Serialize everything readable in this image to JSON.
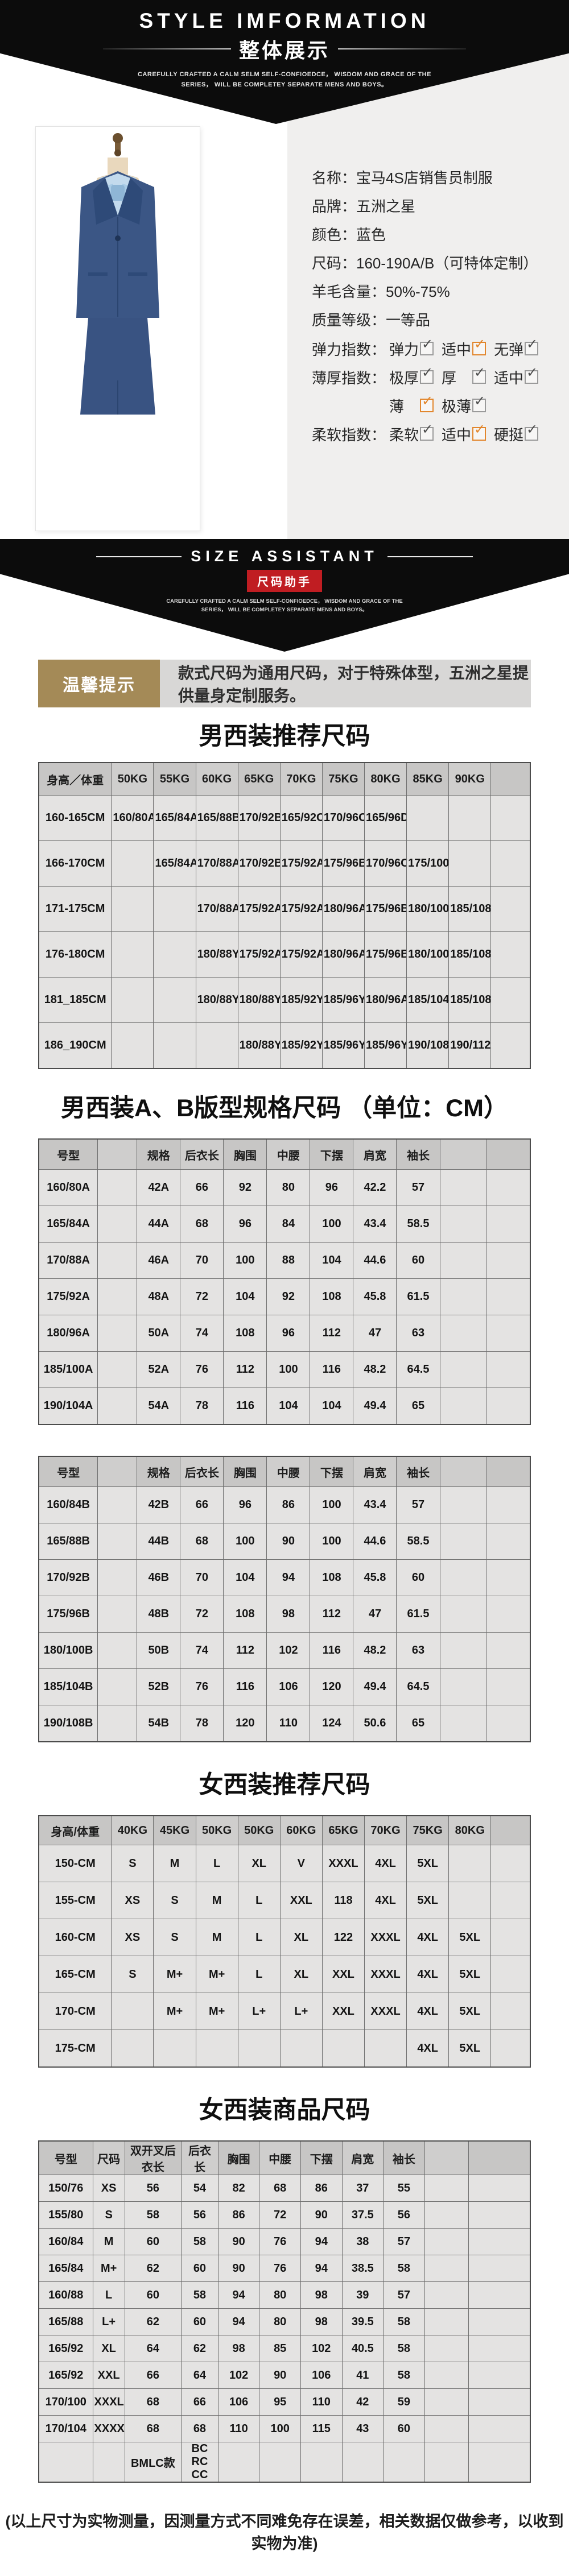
{
  "colors": {
    "accent_orange": "#e2862c",
    "badge_red": "#c01d22",
    "tip_brown": "#a48a57",
    "suit_navy": "#3b5685",
    "shirt_blue": "#c3daed"
  },
  "banner1": {
    "title": "STYLE IMFORMATION",
    "subtitle": "整体展示",
    "tagline1": "CAREFULLY CRAFTED A CALM SELM SELF-CONFIOEDCE， WISDOM AND GRACE OF THE",
    "tagline2": "SERIES， WILL BE COMPLETEY SEPARATE MENS AND BOYS。"
  },
  "product": {
    "details": [
      {
        "label": "名称",
        "value": "宝马4S店销售员制服"
      },
      {
        "label": "品牌",
        "value": "五洲之星"
      },
      {
        "label": "颜色",
        "value": "蓝色"
      },
      {
        "label": "尺码",
        "value": "160-190A/B（可特体定制）"
      },
      {
        "label": "羊毛含量",
        "value": "50%-75%"
      },
      {
        "label": "质量等级",
        "value": "一等品"
      }
    ],
    "indices": [
      {
        "label": "弹力指数",
        "options": [
          {
            "text": "弹力",
            "state": "gray"
          },
          {
            "text": "适中",
            "state": "orange"
          },
          {
            "text": "无弹",
            "state": "gray"
          }
        ]
      },
      {
        "label": "薄厚指数",
        "options": [
          {
            "text": "极厚",
            "state": "gray"
          },
          {
            "text": "厚",
            "state": "gray"
          },
          {
            "text": "适中",
            "state": "gray"
          }
        ]
      },
      {
        "label": "",
        "options": [
          {
            "text": "薄",
            "state": "orange"
          },
          {
            "text": "极薄",
            "state": "gray"
          }
        ]
      },
      {
        "label": "柔软指数",
        "options": [
          {
            "text": "柔软",
            "state": "gray"
          },
          {
            "text": "适中",
            "state": "orange"
          },
          {
            "text": "硬挺",
            "state": "gray"
          }
        ]
      }
    ]
  },
  "banner2": {
    "title": "SIZE ASSISTANT",
    "subtitle": "尺码助手",
    "tagline1": "CAREFULLY CRAFTED A CALM SELM SELF-CONFIOEDCE， WISDOM AND GRACE OF THE",
    "tagline2": "SERIES， WILL BE COMPLETEY SEPARATE MENS AND BOYS。"
  },
  "tip": {
    "label": "温馨提示",
    "text": "款式尺码为通用尺码，对于特殊体型，五洲之星提供量身定制服务。"
  },
  "tables": {
    "men_recommend": {
      "title": "男西装推荐尺码",
      "columns": [
        "身高／体重",
        "50KG",
        "55KG",
        "60KG",
        "65KG",
        "70KG",
        "75KG",
        "80KG",
        "85KG",
        "90KG",
        ""
      ],
      "rows": [
        [
          "160-165CM",
          "160/80A",
          "165/84A",
          "165/88B",
          "170/92B",
          "165/92C",
          "170/96C",
          "165/96D",
          "",
          "",
          ""
        ],
        [
          "166-170CM",
          "",
          "165/84A",
          "170/88A",
          "170/92B",
          "175/92A",
          "175/96B",
          "170/96C",
          "175/100C",
          "",
          ""
        ],
        [
          "171-175CM",
          "",
          "",
          "170/88A",
          "175/92A",
          "175/92A",
          "180/96A",
          "175/96B",
          "180/100B",
          "185/108C",
          ""
        ],
        [
          "176-180CM",
          "",
          "",
          "180/88Y",
          "175/92A",
          "175/92A",
          "180/96A",
          "175/96B",
          "180/100B",
          "185/108C",
          ""
        ],
        [
          "181_185CM",
          "",
          "",
          "180/88Y",
          "180/88Y",
          "185/92Y",
          "185/96Y",
          "180/96A",
          "185/104B",
          "185/108C",
          ""
        ],
        [
          "186_190CM",
          "",
          "",
          "",
          "180/88Y",
          "185/92Y",
          "185/96Y",
          "185/96Y",
          "190/108B",
          "190/112C",
          ""
        ]
      ]
    },
    "men_spec": {
      "title": "男西装A、B版型规格尺码 （单位：CM）",
      "columns": [
        "号型",
        "",
        "规格",
        "后衣长",
        "胸围",
        "中腰",
        "下摆",
        "肩宽",
        "袖长",
        "",
        ""
      ],
      "rows_a": [
        [
          "160/80A",
          "",
          "42A",
          "66",
          "92",
          "80",
          "96",
          "42.2",
          "57",
          "",
          ""
        ],
        [
          "165/84A",
          "",
          "44A",
          "68",
          "96",
          "84",
          "100",
          "43.4",
          "58.5",
          "",
          ""
        ],
        [
          "170/88A",
          "",
          "46A",
          "70",
          "100",
          "88",
          "104",
          "44.6",
          "60",
          "",
          ""
        ],
        [
          "175/92A",
          "",
          "48A",
          "72",
          "104",
          "92",
          "108",
          "45.8",
          "61.5",
          "",
          ""
        ],
        [
          "180/96A",
          "",
          "50A",
          "74",
          "108",
          "96",
          "112",
          "47",
          "63",
          "",
          ""
        ],
        [
          "185/100A",
          "",
          "52A",
          "76",
          "112",
          "100",
          "116",
          "48.2",
          "64.5",
          "",
          ""
        ],
        [
          "190/104A",
          "",
          "54A",
          "78",
          "116",
          "104",
          "104",
          "49.4",
          "65",
          "",
          ""
        ]
      ],
      "rows_b": [
        [
          "160/84B",
          "",
          "42B",
          "66",
          "96",
          "86",
          "100",
          "43.4",
          "57",
          "",
          ""
        ],
        [
          "165/88B",
          "",
          "44B",
          "68",
          "100",
          "90",
          "100",
          "44.6",
          "58.5",
          "",
          ""
        ],
        [
          "170/92B",
          "",
          "46B",
          "70",
          "104",
          "94",
          "108",
          "45.8",
          "60",
          "",
          ""
        ],
        [
          "175/96B",
          "",
          "48B",
          "72",
          "108",
          "98",
          "112",
          "47",
          "61.5",
          "",
          ""
        ],
        [
          "180/100B",
          "",
          "50B",
          "74",
          "112",
          "102",
          "116",
          "48.2",
          "63",
          "",
          ""
        ],
        [
          "185/104B",
          "",
          "52B",
          "76",
          "116",
          "106",
          "120",
          "49.4",
          "64.5",
          "",
          ""
        ],
        [
          "190/108B",
          "",
          "54B",
          "78",
          "120",
          "110",
          "124",
          "50.6",
          "65",
          "",
          ""
        ]
      ]
    },
    "women_recommend": {
      "title": "女西装推荐尺码",
      "columns": [
        "身高/体重",
        "40KG",
        "45KG",
        "50KG",
        "50KG",
        "60KG",
        "65KG",
        "70KG",
        "75KG",
        "80KG",
        ""
      ],
      "rows": [
        [
          "150-CM",
          "S",
          "M",
          "L",
          "XL",
          "V",
          "XXXL",
          "4XL",
          "5XL",
          "",
          ""
        ],
        [
          "155-CM",
          "XS",
          "S",
          "M",
          "L",
          "XXL",
          "118",
          "4XL",
          "5XL",
          "",
          ""
        ],
        [
          "160-CM",
          "XS",
          "S",
          "M",
          "L",
          "XL",
          "122",
          "XXXL",
          "4XL",
          "5XL",
          ""
        ],
        [
          "165-CM",
          "S",
          "M+",
          "M+",
          "L",
          "XL",
          "XXL",
          "XXXL",
          "4XL",
          "5XL",
          ""
        ],
        [
          "170-CM",
          "",
          "M+",
          "M+",
          "L+",
          "L+",
          "XXL",
          "XXXL",
          "4XL",
          "5XL",
          ""
        ],
        [
          "175-CM",
          "",
          "",
          "",
          "",
          "",
          "",
          "",
          "4XL",
          "5XL",
          ""
        ]
      ]
    },
    "women_product": {
      "title": "女西装商品尺码",
      "columns": [
        "号型",
        "尺码",
        "双开叉后衣长",
        "后衣长",
        "胸围",
        "中腰",
        "下摆",
        "肩宽",
        "袖长",
        "",
        ""
      ],
      "rows": [
        [
          "150/76",
          "XS",
          "56",
          "54",
          "82",
          "68",
          "86",
          "37",
          "55",
          "",
          ""
        ],
        [
          "155/80",
          "S",
          "58",
          "56",
          "86",
          "72",
          "90",
          "37.5",
          "56",
          "",
          ""
        ],
        [
          "160/84",
          "M",
          "60",
          "58",
          "90",
          "76",
          "94",
          "38",
          "57",
          "",
          ""
        ],
        [
          "165/84",
          "M+",
          "62",
          "60",
          "90",
          "76",
          "94",
          "38.5",
          "58",
          "",
          ""
        ],
        [
          "160/88",
          "L",
          "60",
          "58",
          "94",
          "80",
          "98",
          "39",
          "57",
          "",
          ""
        ],
        [
          "165/88",
          "L+",
          "62",
          "60",
          "94",
          "80",
          "98",
          "39.5",
          "58",
          "",
          ""
        ],
        [
          "165/92",
          "XL",
          "64",
          "62",
          "98",
          "85",
          "102",
          "40.5",
          "58",
          "",
          ""
        ],
        [
          "165/92",
          "XXL",
          "66",
          "64",
          "102",
          "90",
          "106",
          "41",
          "58",
          "",
          ""
        ],
        [
          "170/100",
          "XXXL",
          "68",
          "66",
          "106",
          "95",
          "110",
          "42",
          "59",
          "",
          ""
        ],
        [
          "170/104",
          "XXXXL",
          "68",
          "68",
          "110",
          "100",
          "115",
          "43",
          "60",
          "",
          ""
        ],
        [
          "",
          "",
          "BMLC款",
          "BC RC CC",
          "",
          "",
          "",
          "",
          "",
          "",
          ""
        ]
      ]
    }
  },
  "footnote": "(以上尺寸为实物测量，因测量方式不同难免存在误差，相关数据仅做参考，以收到实物为准)"
}
